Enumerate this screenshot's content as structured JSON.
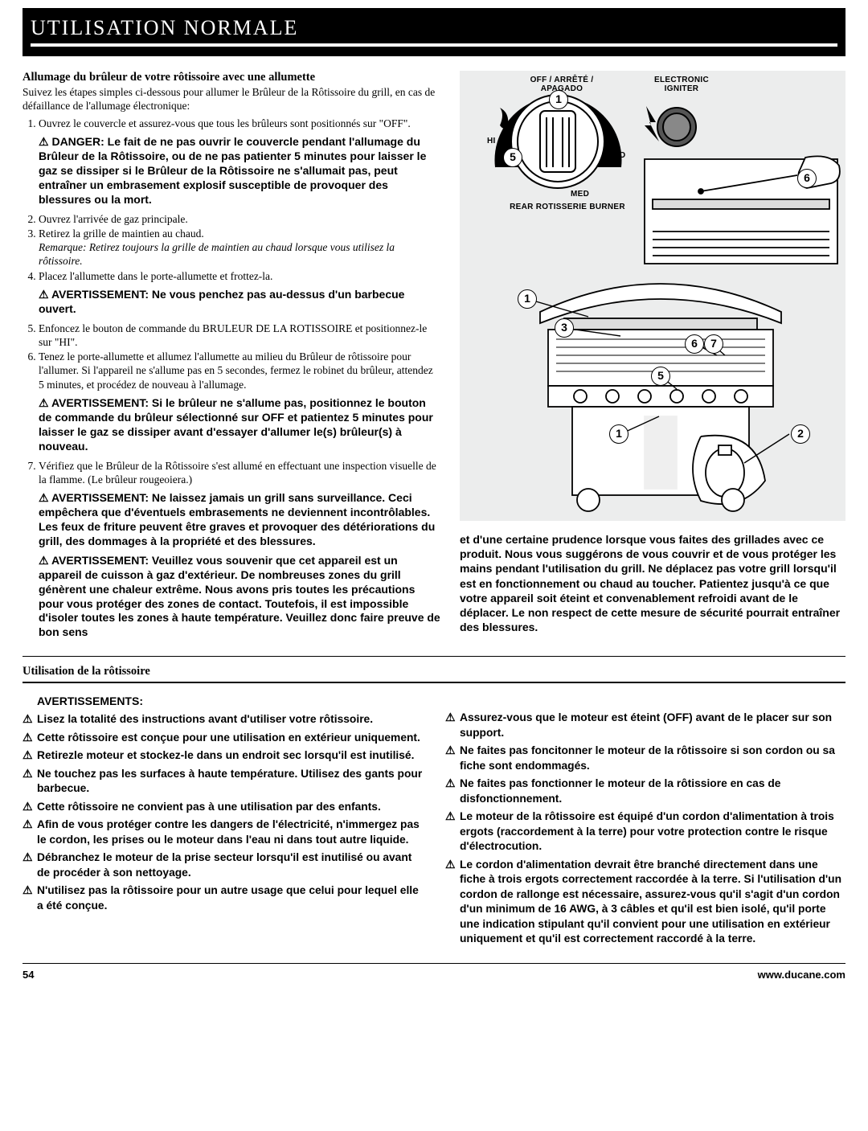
{
  "page": {
    "number": "54",
    "url": "www.ducane.com"
  },
  "header": {
    "title": "UTILISATION NORMALE"
  },
  "left": {
    "h_section": "Allumage du brûleur de votre rôtissoire avec une allumette",
    "lead": "Suivez les étapes simples ci-dessous pour allumer le Brûleur de la Rôtissoire du grill, en cas de défaillance de l'allumage électronique:",
    "step1": "Ouvrez le couvercle et assurez-vous que tous les brûleurs sont positionnés sur \"OFF\".",
    "warn1": "DANGER: Le fait de ne pas ouvrir le couvercle pendant l'allumage du Brûleur de la Rôtissoire, ou de ne pas patienter 5 minutes pour laisser le gaz se dissiper si le Brûleur de la Rôtissoire ne s'allumait pas, peut entraîner un embrasement explosif susceptible de provoquer des blessures ou la mort.",
    "step2": "Ouvrez l'arrivée de gaz principale.",
    "step3": "Retirez la grille de maintien au chaud.",
    "note3": "Remarque: Retirez toujours la grille de maintien au chaud lorsque vous utilisez la rôtissoire.",
    "step4": "Placez l'allumette dans le porte-allumette et frottez-la.",
    "warn2": "AVERTISSEMENT: Ne vous penchez pas au-dessus d'un barbecue ouvert.",
    "step5": "Enfoncez le bouton de commande du BRULEUR DE LA ROTISSOIRE et positionnez-le sur \"HI\".",
    "step6": "Tenez le porte-allumette et allumez l'allumette au milieu du Brûleur de rôtissoire pour l'allumer. Si l'appareil ne s'allume pas en 5 secondes, fermez le robinet du brûleur, attendez 5 minutes, et procédez de nouveau à l'allumage.",
    "warn3": "AVERTISSEMENT: Si le brûleur ne s'allume pas, positionnez le bouton de commande du brûleur sélectionné sur OFF et patientez 5 minutes pour laisser le gaz se dissiper avant d'essayer d'allumer le(s) brûleur(s) à nouveau.",
    "step7": "Vérifiez que le Brûleur de la Rôtissoire s'est allumé en effectuant une inspection visuelle de la flamme. (Le brûleur rougeoiera.)",
    "warn4": "AVERTISSEMENT: Ne laissez jamais un grill sans surveillance. Ceci empêchera que d'éventuels embrasements ne deviennent incontrôlables. Les feux de friture peuvent être graves et provoquer des détériorations du grill, des dommages à la propriété et des blessures.",
    "warn5": "AVERTISSEMENT: Veuillez vous souvenir que cet appareil est un appareil de cuisson à gaz d'extérieur. De nombreuses zones du grill génèrent une chaleur extrême. Nous avons pris toutes les précautions pour vous protéger des zones de contact. Toutefois, il est impossible d'isoler toutes les zones à haute température. Veuillez donc faire preuve de bon sens"
  },
  "right": {
    "diagram": {
      "label_off": "OFF / ARRÊTÉ / APAGADO",
      "label_igniter": "ELECTRONIC IGNITER",
      "label_hi": "HI",
      "label_lo": "LO",
      "label_med": "MED",
      "label_burner": "REAR ROTISSERIE BURNER",
      "callouts": {
        "top_1": "1",
        "top_5": "5",
        "top_6": "6",
        "g_1": "1",
        "g_3": "3",
        "g_6": "6",
        "g_7": "7",
        "g_5": "5",
        "g_bottom_1": "1",
        "g_2": "2"
      },
      "colors": {
        "bg": "#eceded",
        "stroke": "#000000"
      }
    },
    "continuation": "et d'une certaine prudence lorsque vous faites des grillades avec ce produit. Nous vous suggérons de vous couvrir et de vous protéger les mains pendant l'utilisation du grill. Ne déplacez pas votre grill lorsqu'il est en fonctionnement ou chaud au toucher. Patientez jusqu'à ce que votre appareil soit éteint et convenablement refroidi avant de le déplacer. Le non respect de cette mesure de sécurité pourrait entraîner des blessures."
  },
  "bottom": {
    "h": "Utilisation de la rôtissoire",
    "h_av": "AVERTISSEMENTS:",
    "left_items": [
      "Lisez la totalité des instructions avant d'utiliser votre rôtissoire.",
      "Cette rôtissoire est conçue pour une utilisation en extérieur uniquement.",
      "Retirezle moteur et stockez-le dans un endroit sec lorsqu'il est inutilisé.",
      "Ne touchez pas les surfaces à haute température. Utilisez des gants pour barbecue.",
      "Cette rôtissoire ne convient pas à une utilisation par des enfants.",
      "Afin de vous protéger contre les dangers de l'électricité, n'immergez pas le cordon, les prises ou le moteur dans l'eau ni dans tout autre liquide.",
      "Débranchez le moteur de la prise secteur lorsqu'il est inutilisé ou avant de procéder à son nettoyage.",
      "N'utilisez pas la rôtissoire pour un autre usage que celui pour lequel elle a été conçue."
    ],
    "right_items": [
      "Assurez-vous que le moteur est éteint (OFF) avant de le placer sur son support.",
      "Ne faites pas foncitonner le moteur de la rôtissoire si son cordon ou sa fiche sont endommagés.",
      "Ne faites pas fonctionner le moteur de la rôtissiore en cas de disfonctionnement.",
      "Le moteur de la rôtissoire est équipé d'un cordon d'alimentation à trois ergots (raccordement à la terre) pour votre protection contre le risque d'électrocution.",
      "Le cordon d'alimentation devrait être branché directement dans une fiche à trois ergots correctement raccordée à la terre. Si l'utilisation d'un cordon de rallonge est nécessaire, assurez-vous qu'il s'agit d'un cordon d'un minimum de 16 AWG, à 3 câbles et qu'il est bien isolé, qu'il porte une indication stipulant qu'il convient pour une utilisation en extérieur uniquement et qu'il est correctement raccordé à la terre."
    ]
  }
}
